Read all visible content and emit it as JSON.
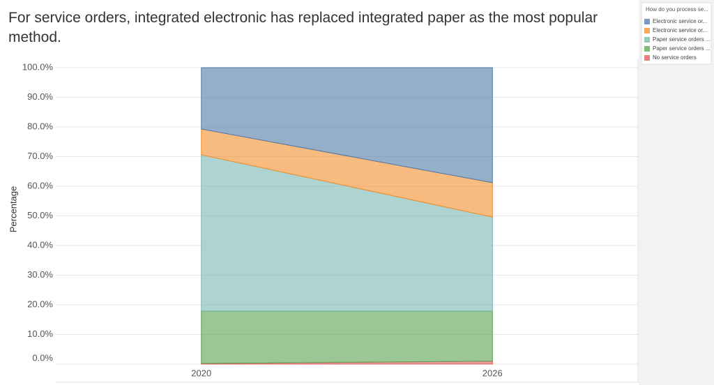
{
  "chart_data": {
    "type": "stacked-area",
    "title": "For service orders, integrated electronic has replaced integrated paper as the most popular method.",
    "y_label": "Percentage",
    "legend_title": "How do you process se...",
    "categories": [
      "2020",
      "2026"
    ],
    "series": [
      {
        "name": "Electronic service or...",
        "color": "#4e79a7",
        "values": [
          20.7,
          38.8
        ]
      },
      {
        "name": "Electronic service or...",
        "color": "#f28e2b",
        "values": [
          8.7,
          11.6
        ]
      },
      {
        "name": "Paper service orders ...",
        "color": "#76b7b2",
        "values": [
          52.7,
          31.7
        ]
      },
      {
        "name": "Paper service orders ...",
        "color": "#59a14f",
        "values": [
          17.7,
          16.9
        ]
      },
      {
        "name": "No service orders",
        "color": "#e15759",
        "values": [
          0.2,
          1.0
        ]
      }
    ],
    "ylim": [
      0,
      100
    ],
    "yticks": [
      {
        "value": 0,
        "label": "0.0%"
      },
      {
        "value": 10,
        "label": "10.0%"
      },
      {
        "value": 20,
        "label": "20.0%"
      },
      {
        "value": 30,
        "label": "30.0%"
      },
      {
        "value": 40,
        "label": "40.0%"
      },
      {
        "value": 50,
        "label": "50.0%"
      },
      {
        "value": 60,
        "label": "60.0%"
      },
      {
        "value": 70,
        "label": "70.0%"
      },
      {
        "value": 80,
        "label": "80.0%"
      },
      {
        "value": 90,
        "label": "90.0%"
      },
      {
        "value": 100,
        "label": "100.0%"
      }
    ],
    "grid": true,
    "legend": "right"
  }
}
